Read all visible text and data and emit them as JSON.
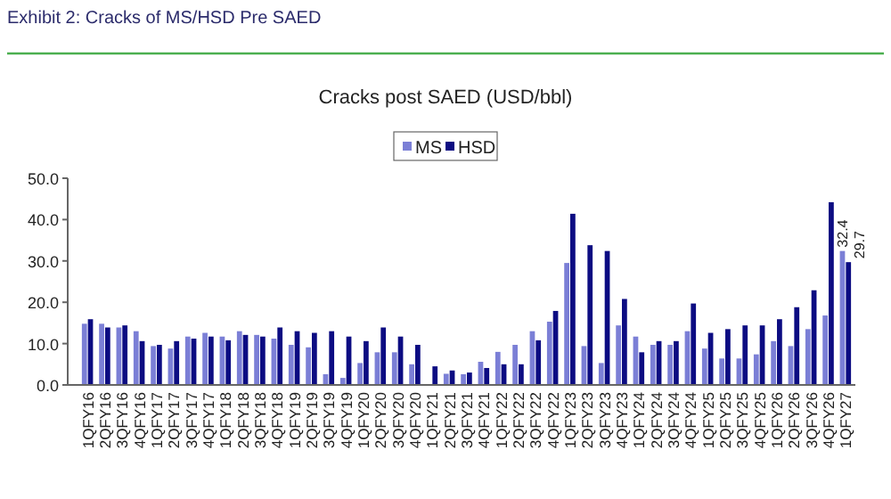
{
  "chart_data": {
    "type": "bar",
    "title": "Cracks post SAED (USD/bbl)",
    "annotations": [
      "Exhibit 2: Cracks of MS/HSD Pre SAED"
    ],
    "categories": [
      "1QFY16",
      "2QFY16",
      "3QFY16",
      "4QFY16",
      "1QFY17",
      "2QFY17",
      "3QFY17",
      "4QFY17",
      "1QFY18",
      "2QFY18",
      "3QFY18",
      "4QFY18",
      "1QFY19",
      "2QFY19",
      "3QFY19",
      "4QFY19",
      "1QFY20",
      "2QFY20",
      "3QFY20",
      "4QFY20",
      "1QFY21",
      "2QFY21",
      "3QFY21",
      "4QFY21",
      "1QFY22",
      "2QFY22",
      "3QFY22",
      "4QFY22",
      "1QFY23",
      "2QFY23",
      "3QFY23",
      "4QFY23",
      "1QFY24",
      "2QFY24",
      "3QFY24",
      "4QFY24",
      "1QFY25",
      "2QFY25",
      "3QFY25",
      "4QFY25",
      "1QFY26",
      "2QFY26",
      "3QFY26",
      "4QFY26",
      "1QFY27"
    ],
    "series": [
      {
        "name": "MS",
        "color": "#7b7fd6",
        "values": [
          14.8,
          14.8,
          13.9,
          13.0,
          9.4,
          8.8,
          11.7,
          12.6,
          11.7,
          13.0,
          12.1,
          11.2,
          9.7,
          9.1,
          2.6,
          1.7,
          5.3,
          7.9,
          7.9,
          5.0,
          null,
          2.7,
          2.6,
          5.6,
          8.0,
          9.7,
          13.0,
          15.3,
          29.5,
          9.4,
          5.3,
          14.4,
          11.7,
          9.7,
          9.7,
          13.0,
          8.8,
          6.4,
          6.4,
          7.4,
          10.6,
          9.4,
          13.5,
          16.8,
          32.4
        ],
        "value_labels": [
          null,
          null,
          null,
          null,
          null,
          null,
          null,
          null,
          null,
          null,
          null,
          null,
          null,
          null,
          null,
          null,
          null,
          null,
          null,
          null,
          null,
          null,
          null,
          null,
          null,
          null,
          null,
          null,
          null,
          null,
          null,
          null,
          null,
          null,
          null,
          null,
          null,
          null,
          null,
          null,
          null,
          null,
          null,
          null,
          "32.4"
        ]
      },
      {
        "name": "HSD",
        "color": "#0c0c82",
        "values": [
          15.9,
          13.9,
          14.4,
          10.6,
          9.7,
          10.6,
          11.2,
          11.7,
          10.8,
          12.1,
          11.7,
          13.9,
          13.0,
          12.6,
          13.0,
          11.7,
          10.6,
          13.9,
          11.7,
          9.7,
          4.5,
          3.5,
          3.0,
          4.1,
          5.0,
          5.0,
          10.8,
          17.9,
          41.4,
          33.8,
          32.4,
          20.8,
          7.9,
          10.6,
          10.6,
          19.7,
          12.6,
          13.5,
          14.4,
          14.4,
          15.9,
          18.8,
          22.9,
          44.2,
          29.7
        ],
        "value_labels": [
          null,
          null,
          null,
          null,
          null,
          null,
          null,
          null,
          null,
          null,
          null,
          null,
          null,
          null,
          null,
          null,
          null,
          null,
          null,
          null,
          null,
          null,
          null,
          null,
          null,
          null,
          null,
          null,
          null,
          null,
          null,
          null,
          null,
          null,
          null,
          null,
          null,
          null,
          null,
          null,
          null,
          null,
          null,
          null,
          "29.7"
        ]
      }
    ],
    "ylim": [
      0,
      50
    ],
    "yticks": [
      {
        "value": 0,
        "label": "0.0"
      },
      {
        "value": 10,
        "label": "10.0"
      },
      {
        "value": 20,
        "label": "20.0"
      },
      {
        "value": 30,
        "label": "30.0"
      },
      {
        "value": 40,
        "label": "40.0"
      },
      {
        "value": 50,
        "label": "50.0"
      }
    ],
    "grid": false,
    "legend": "top"
  }
}
